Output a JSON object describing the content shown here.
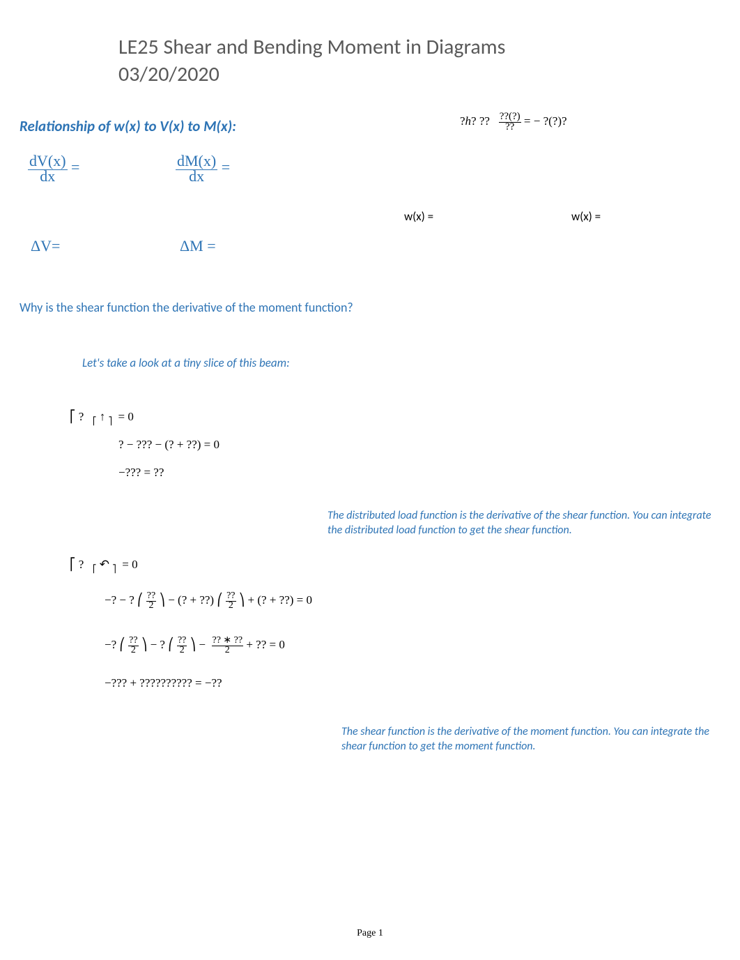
{
  "colors": {
    "heading_gray": "#595959",
    "accent_blue": "#2e74b5",
    "text_black": "#000000",
    "background": "#ffffff"
  },
  "fonts": {
    "body": "Calibri",
    "math": "Cambria Math",
    "serif": "Times New Roman",
    "title_size_pt": 22,
    "section_size_pt": 16,
    "body_size_pt": 13
  },
  "title": {
    "line1": "LE25 Shear and Bending Moment in Diagrams",
    "line2": "03/20/2020"
  },
  "section_heading": "Relationship of w(x) to V(x) to M(x):",
  "top_formula": {
    "lhs_prefix": "?",
    "lhs_h": "h",
    "lhs_suffix": "? ??",
    "frac_num": "??(?)",
    "frac_den": "??",
    "rhs": "= − ?(?)?"
  },
  "deriv1": {
    "num": "dV(x)",
    "den": "dx",
    "eq": "="
  },
  "deriv2": {
    "num": "dM(x)",
    "den": "dx",
    "eq": "="
  },
  "wx1": "w(x) =",
  "wx2": "w(x) =",
  "deltaV": "ΔV=",
  "deltaM": "ΔM =",
  "why_question": "Why is the shear function the derivative of the moment function?",
  "look_slice": "Let's take a look at a tiny slice of this beam:",
  "eq1": {
    "prefix": "⎡ ?",
    "arrow_l": "⎡",
    "arrow": "↑",
    "arrow_r": "⎤",
    "suffix": "= 0"
  },
  "eq2": "? − ??? − (? + ??) = 0",
  "eq3": "−??? = ??",
  "explain1": "The distributed load function is the derivative of the shear function. You can integrate the distributed load function to get the shear function.",
  "eq4": {
    "prefix": "⎡ ?",
    "cc_l": "⎡",
    "cc": "↶",
    "cc_r": "⎤",
    "suffix": "= 0"
  },
  "eq5": {
    "a": "−? − ? ⎛",
    "f1_num": "??",
    "f1_den": "2",
    "b": "⎞ − (? + ??) ⎛",
    "f2_num": "??",
    "f2_den": "2",
    "c": "⎞ + (? + ??) = 0"
  },
  "eq6": {
    "a": "−? ⎛",
    "f1_num": "??",
    "f1_den": "2",
    "b": "⎞ − ? ⎛",
    "f2_num": "??",
    "f2_den": "2",
    "c": "⎞ −",
    "f3_num": "?? ∗ ??",
    "f3_den": "2",
    "d": "+ ?? = 0"
  },
  "eq7": "−??? + ?????????? = −??",
  "explain2": "The shear function is the derivative of the moment function. You can integrate the shear function to get the moment function.",
  "page_footer": "Page 1"
}
